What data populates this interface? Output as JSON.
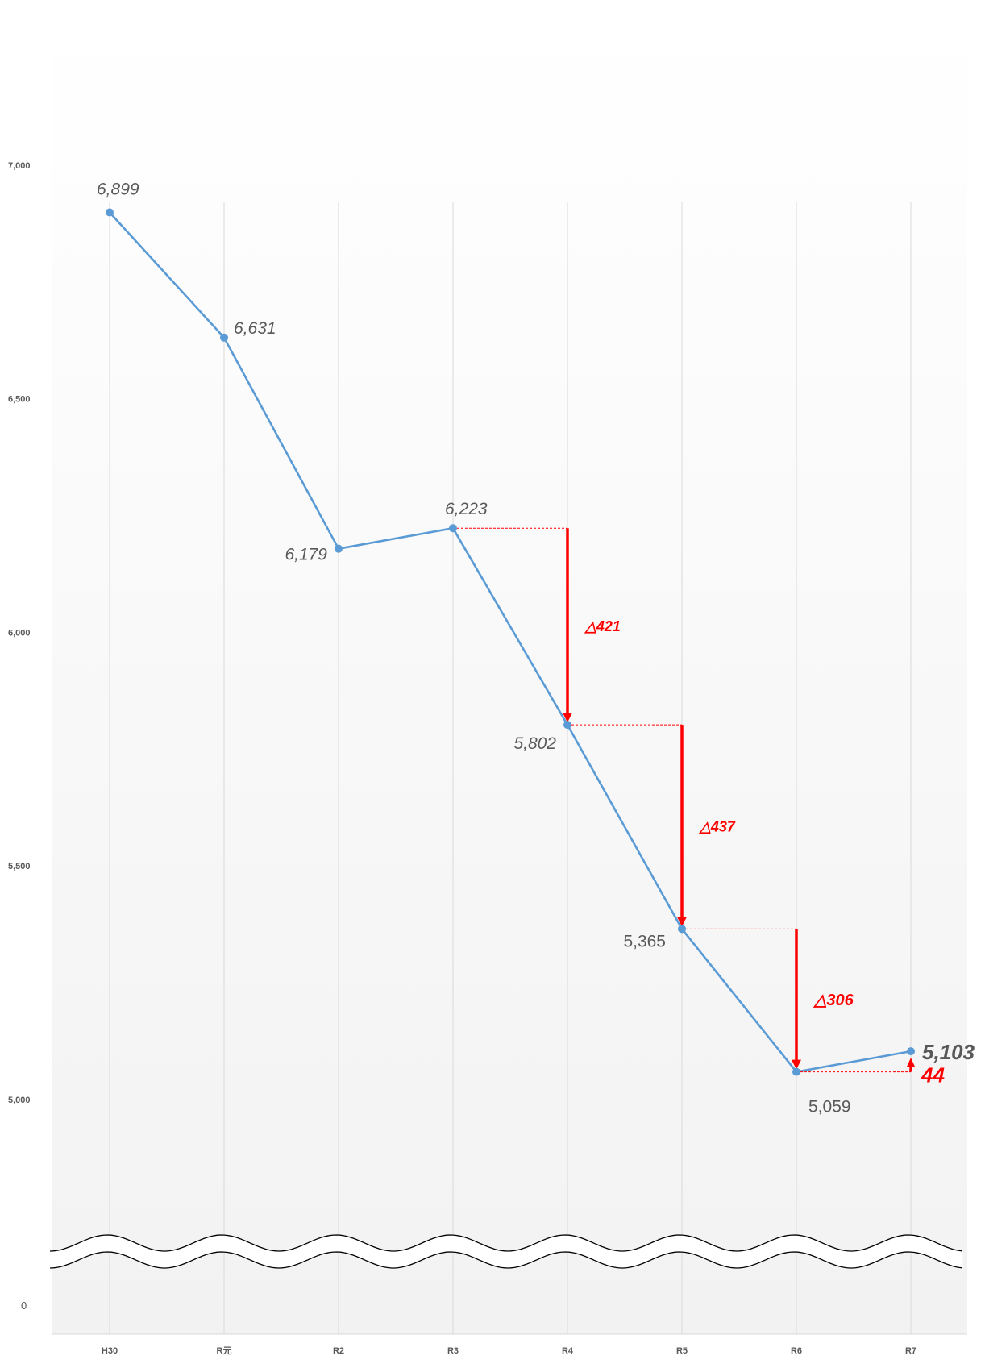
{
  "chart_data": {
    "type": "line",
    "title": "",
    "xlabel": "",
    "ylabel": "",
    "categories": [
      "H30",
      "R元",
      "R2",
      "R3",
      "R4",
      "R5",
      "R6",
      "R7"
    ],
    "series": [
      {
        "values": [
          6899,
          6631,
          6179,
          6223,
          5802,
          5365,
          5059,
          5103
        ]
      }
    ],
    "data_labels": [
      "6,899",
      "6,631",
      "6,179",
      "6,223",
      "5,802",
      "5,365",
      "5,059",
      "5,103"
    ],
    "y_ticks": [
      {
        "value": 7000,
        "label": "7,000"
      },
      {
        "value": 6500,
        "label": "6,500"
      },
      {
        "value": 6000,
        "label": "6,000"
      },
      {
        "value": 5500,
        "label": "5,500"
      },
      {
        "value": 5000,
        "label": "5,000"
      },
      {
        "value": 0,
        "label": "0"
      }
    ],
    "ylim": [
      4300,
      7350
    ],
    "axis_break": true,
    "grid": "vertical",
    "legend": "none",
    "colors": {
      "line": "#5b9bd5",
      "annotation": "#ff0000",
      "label": "#595959",
      "gridline": "#d9d9d9",
      "background_top": "#ffffff",
      "background_bottom": "#f2f2f2"
    },
    "annotations": [
      {
        "from_index": 3,
        "to_index": 4,
        "direction": "down",
        "label": "△421"
      },
      {
        "from_index": 4,
        "to_index": 5,
        "direction": "down",
        "label": "△437"
      },
      {
        "from_index": 5,
        "to_index": 6,
        "direction": "down",
        "label": "△306"
      },
      {
        "from_index": 6,
        "to_index": 7,
        "direction": "up",
        "label": "44"
      }
    ]
  }
}
